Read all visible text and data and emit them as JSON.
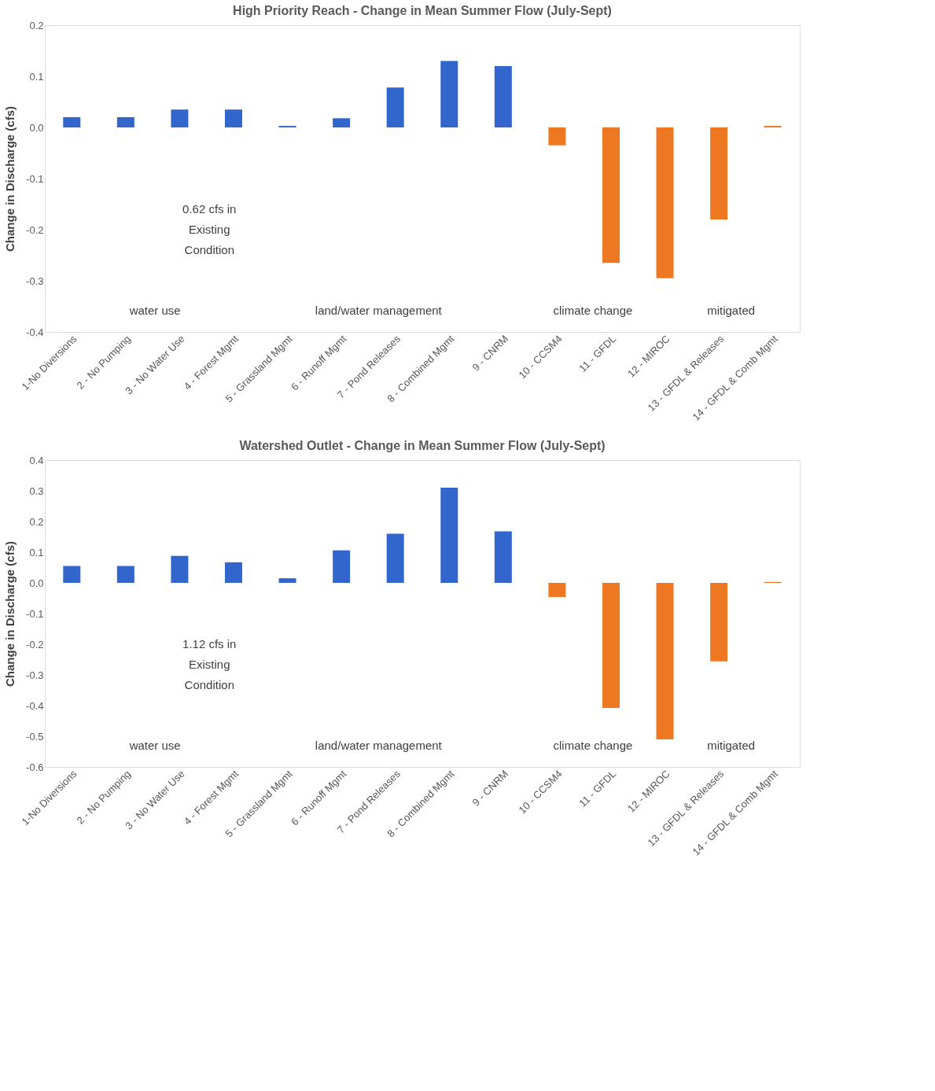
{
  "chart_data": [
    {
      "type": "bar",
      "title": "High Priority Reach - Change in Mean Summer Flow (July-Sept)",
      "ylabel": "Change in Discharge (cfs)",
      "categories": [
        "1-No Diversions",
        "2 - No Pumping",
        "3 - No Water Use",
        "4 - Forest Mgmt",
        "5 - Grassland Mgmt",
        "6 - Runoff Mgmt",
        "7 - Pond Releases",
        "8 - Combined Mgmt",
        "9 - CNRM",
        "10 - CCSM4",
        "11 - GFDL",
        "12 - MIROC",
        "13 - GFDL & Releases",
        "14 - GFDL & Comb Mgmt"
      ],
      "values": [
        0.02,
        0.02,
        0.035,
        0.035,
        0.003,
        0.018,
        0.078,
        0.13,
        0.12,
        -0.035,
        -0.265,
        -0.295,
        -0.18,
        0.003
      ],
      "colors": [
        "#3366cc",
        "#3366cc",
        "#3366cc",
        "#3366cc",
        "#3366cc",
        "#3366cc",
        "#3366cc",
        "#3366cc",
        "#3366cc",
        "#ee7722",
        "#ee7722",
        "#ee7722",
        "#ee7722",
        "#ee7722"
      ],
      "ylim": [
        -0.4,
        0.2
      ],
      "yticks": [
        0.2,
        0.1,
        {
          "value": 0,
          "label": "0.0"
        },
        -0.1,
        -0.2,
        -0.3,
        -0.4
      ],
      "grid": false,
      "annotations": [
        "0.62 cfs in\nExisting\nCondition",
        "water use",
        "land/water management",
        "climate change",
        "mitigated"
      ]
    },
    {
      "type": "bar",
      "title": "Watershed Outlet - Change in Mean Summer Flow (July-Sept)",
      "ylabel": "Change in Discharge (cfs)",
      "categories": [
        "1-No Diversions",
        "2 - No Pumping",
        "3 - No Water Use",
        "4 - Forest Mgmt",
        "5 - Grassland Mgmt",
        "6 - Runoff Mgmt",
        "7 - Pond Releases",
        "8 - Combined Mgmt",
        "9 - CNRM",
        "10 - CCSM4",
        "11 - GFDL",
        "12 - MIROC",
        "13 - GFDL & Releases",
        "14 - GFDL & Comb Mgmt"
      ],
      "values": [
        0.055,
        0.055,
        0.088,
        0.067,
        0.015,
        0.106,
        0.16,
        0.31,
        0.168,
        -0.046,
        -0.408,
        -0.51,
        -0.256,
        0.003
      ],
      "colors": [
        "#3366cc",
        "#3366cc",
        "#3366cc",
        "#3366cc",
        "#3366cc",
        "#3366cc",
        "#3366cc",
        "#3366cc",
        "#3366cc",
        "#ee7722",
        "#ee7722",
        "#ee7722",
        "#ee7722",
        "#ee7722"
      ],
      "ylim": [
        -0.6,
        0.4
      ],
      "yticks": [
        0.4,
        0.3,
        0.2,
        0.1,
        {
          "value": 0,
          "label": "0.0"
        },
        -0.1,
        -0.2,
        -0.3,
        -0.4,
        -0.5,
        -0.6
      ],
      "grid": false,
      "annotations": [
        "1.12 cfs in\nExisting\nCondition",
        "water use",
        "land/water management",
        "climate change",
        "mitigated"
      ]
    }
  ]
}
